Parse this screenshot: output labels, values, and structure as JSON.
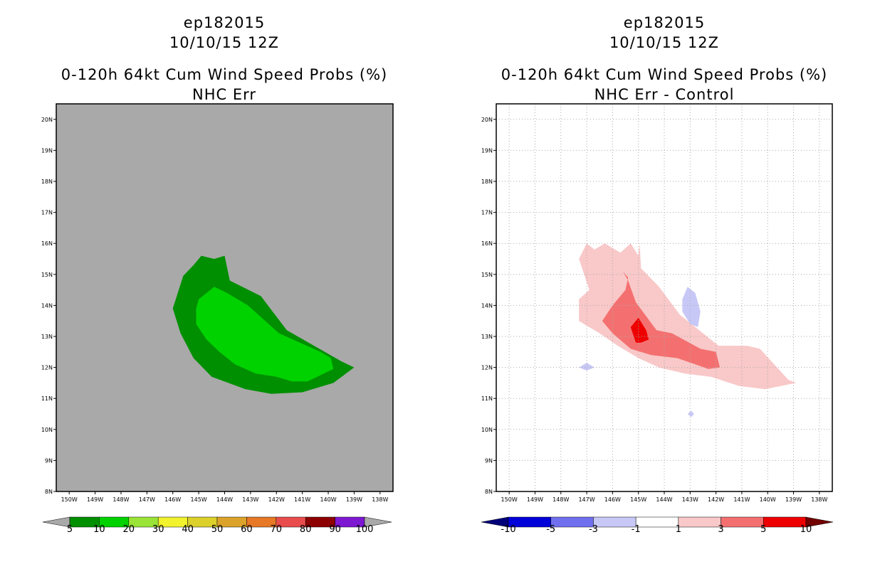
{
  "chart_data": [
    {
      "type": "contour_map",
      "storm_id": "ep182015",
      "datetime": "10/10/15 12Z",
      "title": "0-120h 64kt Cum Wind Speed Probs (%)",
      "subtitle": "NHC Err",
      "x_ticks": [
        "150W",
        "149W",
        "148W",
        "147W",
        "146W",
        "145W",
        "144W",
        "143W",
        "142W",
        "141W",
        "140W",
        "139W",
        "138W"
      ],
      "y_ticks": [
        "20N",
        "19N",
        "18N",
        "17N",
        "16N",
        "15N",
        "14N",
        "13N",
        "12N",
        "11N",
        "10N",
        "9N",
        "8N"
      ],
      "xlim": [
        -150.5,
        -137.5
      ],
      "ylim": [
        8,
        20.5
      ],
      "background_color": "#a9a9a9",
      "grid": false,
      "colorbar": {
        "levels": [
          "5",
          "10",
          "20",
          "30",
          "40",
          "50",
          "60",
          "70",
          "80",
          "90",
          "100"
        ],
        "colors": [
          "#008f00",
          "#00d200",
          "#9ae337",
          "#f2f22d",
          "#dcd02b",
          "#dca32a",
          "#e77826",
          "#e84c4c",
          "#8c0000",
          "#7d17d2"
        ],
        "under_color": "#a9a9a9",
        "over_color": "#a9a9a9"
      },
      "regions": [
        {
          "level": "5-10",
          "color": "#008f00",
          "polygon": [
            [
              -146.0,
              13.9
            ],
            [
              -145.6,
              14.95
            ],
            [
              -145.2,
              15.3
            ],
            [
              -144.9,
              15.6
            ],
            [
              -144.4,
              15.5
            ],
            [
              -144.0,
              15.6
            ],
            [
              -143.8,
              14.8
            ],
            [
              -142.6,
              14.3
            ],
            [
              -141.6,
              13.2
            ],
            [
              -139.5,
              12.2
            ],
            [
              -139.0,
              12.0
            ],
            [
              -139.8,
              11.5
            ],
            [
              -141.0,
              11.2
            ],
            [
              -142.2,
              11.15
            ],
            [
              -143.2,
              11.3
            ],
            [
              -144.5,
              11.7
            ],
            [
              -145.2,
              12.3
            ],
            [
              -145.7,
              13.1
            ]
          ]
        },
        {
          "level": "10-20",
          "color": "#00d200",
          "polygon": [
            [
              -145.1,
              13.9
            ],
            [
              -145.0,
              14.2
            ],
            [
              -144.4,
              14.6
            ],
            [
              -143.9,
              14.4
            ],
            [
              -143.1,
              14.0
            ],
            [
              -141.9,
              13.1
            ],
            [
              -140.3,
              12.5
            ],
            [
              -139.9,
              12.3
            ],
            [
              -139.8,
              11.95
            ],
            [
              -140.8,
              11.55
            ],
            [
              -141.4,
              11.55
            ],
            [
              -142.0,
              11.7
            ],
            [
              -142.8,
              11.8
            ],
            [
              -143.6,
              12.1
            ],
            [
              -144.2,
              12.5
            ],
            [
              -144.7,
              12.9
            ],
            [
              -145.1,
              13.4
            ]
          ]
        }
      ]
    },
    {
      "type": "contour_map",
      "storm_id": "ep182015",
      "datetime": "10/10/15 12Z",
      "title": "0-120h 64kt Cum Wind Speed Probs (%)",
      "subtitle": "NHC Err - Control",
      "x_ticks": [
        "150W",
        "149W",
        "148W",
        "147W",
        "146W",
        "145W",
        "144W",
        "143W",
        "142W",
        "141W",
        "140W",
        "139W",
        "138W"
      ],
      "y_ticks": [
        "20N",
        "19N",
        "18N",
        "17N",
        "16N",
        "15N",
        "14N",
        "13N",
        "12N",
        "11N",
        "10N",
        "9N",
        "8N"
      ],
      "xlim": [
        -150.5,
        -137.5
      ],
      "ylim": [
        8,
        20.5
      ],
      "background_color": "#ffffff",
      "grid": true,
      "colorbar": {
        "levels": [
          "-10",
          "-5",
          "-3",
          "-1",
          "1",
          "3",
          "5",
          "10"
        ],
        "colors": [
          "#0000d9",
          "#7070ef",
          "#c8c8f7",
          "#ffffff",
          "#f9c8c8",
          "#f47070",
          "#ef0000"
        ],
        "under_color": "#00007a",
        "over_color": "#720000"
      },
      "regions": [
        {
          "level": "1-3",
          "color": "#f9c8c8",
          "polygon": [
            [
              -147.3,
              15.5
            ],
            [
              -147.0,
              16.0
            ],
            [
              -146.7,
              15.8
            ],
            [
              -146.3,
              16.0
            ],
            [
              -145.7,
              15.7
            ],
            [
              -145.3,
              16.0
            ],
            [
              -145.0,
              15.6
            ],
            [
              -144.95,
              16.0
            ],
            [
              -144.9,
              15.2
            ],
            [
              -144.2,
              14.6
            ],
            [
              -143.4,
              13.7
            ],
            [
              -142.8,
              13.3
            ],
            [
              -141.9,
              12.7
            ],
            [
              -141.3,
              12.7
            ],
            [
              -140.8,
              12.7
            ],
            [
              -140.3,
              12.6
            ],
            [
              -139.2,
              11.6
            ],
            [
              -138.9,
              11.5
            ],
            [
              -139.5,
              11.4
            ],
            [
              -140.1,
              11.3
            ],
            [
              -141.1,
              11.4
            ],
            [
              -142.2,
              11.7
            ],
            [
              -143.2,
              11.8
            ],
            [
              -144.2,
              12.0
            ],
            [
              -145.0,
              12.3
            ],
            [
              -145.8,
              12.7
            ],
            [
              -146.5,
              13.1
            ],
            [
              -147.3,
              13.5
            ],
            [
              -147.3,
              14.2
            ],
            [
              -146.9,
              14.5
            ]
          ]
        },
        {
          "level": "3-5",
          "color": "#f47070",
          "polygon": [
            [
              -146.4,
              13.5
            ],
            [
              -146.0,
              14.0
            ],
            [
              -145.5,
              14.5
            ],
            [
              -145.4,
              14.9
            ],
            [
              -145.6,
              15.1
            ],
            [
              -145.4,
              14.8
            ],
            [
              -145.1,
              14.1
            ],
            [
              -144.3,
              13.2
            ],
            [
              -143.7,
              13.1
            ],
            [
              -142.6,
              12.6
            ],
            [
              -142.0,
              12.5
            ],
            [
              -141.85,
              12.0
            ],
            [
              -142.3,
              11.95
            ],
            [
              -142.8,
              12.1
            ],
            [
              -143.5,
              12.3
            ],
            [
              -144.5,
              12.4
            ],
            [
              -145.3,
              12.6
            ],
            [
              -146.0,
              13.1
            ]
          ]
        },
        {
          "level": "5-10",
          "color": "#ef0000",
          "polygon": [
            [
              -145.3,
              13.3
            ],
            [
              -145.0,
              13.6
            ],
            [
              -144.7,
              13.2
            ],
            [
              -144.6,
              12.9
            ],
            [
              -144.9,
              12.8
            ],
            [
              -145.1,
              12.8
            ]
          ]
        },
        {
          "level": "-3--1",
          "color": "#c8c8f7",
          "polygon": [
            [
              -143.3,
              14.2
            ],
            [
              -143.1,
              14.6
            ],
            [
              -142.8,
              14.4
            ],
            [
              -142.6,
              13.8
            ],
            [
              -142.7,
              13.3
            ],
            [
              -143.0,
              13.4
            ],
            [
              -143.3,
              13.8
            ]
          ]
        },
        {
          "level": "-3--1",
          "color": "#c8c8f7",
          "polygon": [
            [
              -147.3,
              12.0
            ],
            [
              -147.0,
              12.15
            ],
            [
              -146.7,
              12.0
            ],
            [
              -147.0,
              11.9
            ]
          ]
        },
        {
          "level": "-3--1",
          "color": "#c8c8f7",
          "polygon": [
            [
              -143.1,
              10.5
            ],
            [
              -142.95,
              10.6
            ],
            [
              -142.85,
              10.5
            ],
            [
              -142.95,
              10.4
            ]
          ]
        }
      ]
    }
  ]
}
